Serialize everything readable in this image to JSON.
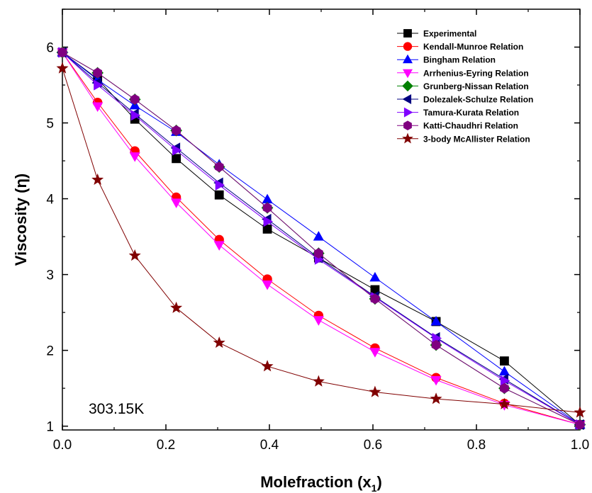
{
  "chart_data": {
    "type": "line",
    "xlabel": "Molefraction (x",
    "xlabel_sub": "1",
    "xlabel_close": ")",
    "ylabel": "Viscosity (η)",
    "annotation": "303.15K",
    "xlim": [
      0.0,
      1.0
    ],
    "ylim": [
      0.95,
      6.5
    ],
    "xticks": [
      "0.0",
      "0.2",
      "0.4",
      "0.6",
      "0.8",
      "1.0"
    ],
    "yticks": [
      "1",
      "2",
      "3",
      "4",
      "5",
      "6"
    ],
    "legend_position": "top-right",
    "x": [
      0.0,
      0.068,
      0.14,
      0.22,
      0.303,
      0.396,
      0.495,
      0.604,
      0.722,
      0.854,
      1.0
    ],
    "series": [
      {
        "name": "Experimental",
        "marker": "square",
        "color": "#000000",
        "values": [
          5.93,
          5.58,
          5.05,
          4.53,
          4.05,
          3.6,
          3.22,
          2.8,
          2.38,
          1.86,
          1.02
        ]
      },
      {
        "name": "Kendall-Munroe Relation",
        "marker": "circle",
        "color": "#ff0000",
        "values": [
          5.93,
          5.27,
          4.63,
          4.02,
          3.46,
          2.94,
          2.46,
          2.03,
          1.64,
          1.3,
          1.02
        ]
      },
      {
        "name": "Bingham Relation",
        "marker": "triangle-up",
        "color": "#0000ff",
        "values": [
          5.93,
          5.57,
          5.23,
          4.88,
          4.45,
          3.99,
          3.5,
          2.96,
          2.38,
          1.72,
          1.02
        ]
      },
      {
        "name": "Arrhenius-Eyring Relation",
        "marker": "triangle-down",
        "color": "#ff00ff",
        "values": [
          5.93,
          5.22,
          4.56,
          3.95,
          3.39,
          2.87,
          2.4,
          1.98,
          1.61,
          1.28,
          1.02
        ]
      },
      {
        "name": "Grunberg-Nissan Relation",
        "marker": "diamond",
        "color": "#008000",
        "values": [
          5.93,
          5.66,
          5.31,
          4.9,
          4.42,
          3.88,
          3.28,
          2.68,
          2.07,
          1.5,
          1.02
        ]
      },
      {
        "name": "Dolezalek-Schulze Relation",
        "marker": "triangle-left",
        "color": "#000080",
        "values": [
          5.93,
          5.53,
          5.12,
          4.67,
          4.21,
          3.73,
          3.22,
          2.71,
          2.17,
          1.62,
          1.02
        ]
      },
      {
        "name": "Tamura-Kurata Relation",
        "marker": "triangle-right",
        "color": "#8000ff",
        "values": [
          5.93,
          5.5,
          5.1,
          4.64,
          4.18,
          3.7,
          3.2,
          2.7,
          2.16,
          1.6,
          1.02
        ]
      },
      {
        "name": "Katti-Chaudhri Relation",
        "marker": "hexagon",
        "color": "#800080",
        "values": [
          5.93,
          5.66,
          5.31,
          4.9,
          4.42,
          3.88,
          3.28,
          2.68,
          2.07,
          1.5,
          1.02
        ]
      },
      {
        "name": "3-body McAllister Relation",
        "marker": "star",
        "color": "#800000",
        "values": [
          5.72,
          4.25,
          3.25,
          2.56,
          2.1,
          1.79,
          1.59,
          1.45,
          1.36,
          1.29,
          1.18
        ]
      }
    ]
  }
}
